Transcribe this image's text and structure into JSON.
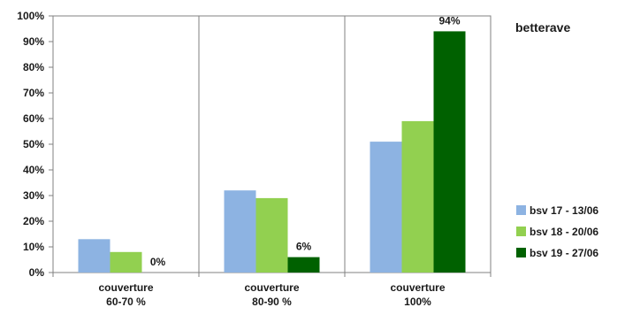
{
  "chart_data": {
    "type": "bar",
    "legend_title": "betterave",
    "categories": [
      [
        "couverture",
        "60-70 %"
      ],
      [
        "couverture",
        "80-90 %"
      ],
      [
        "couverture",
        "100%"
      ]
    ],
    "y_ticks": [
      "0%",
      "10%",
      "20%",
      "30%",
      "40%",
      "50%",
      "60%",
      "70%",
      "80%",
      "90%",
      "100%"
    ],
    "ylim": [
      0,
      100
    ],
    "grid": "vertical category separators",
    "legend_position": "right",
    "series": [
      {
        "name": "bsv 17 - 13/06",
        "color": "#8db3e2",
        "values": [
          13,
          32,
          51
        ]
      },
      {
        "name": "bsv 18 - 20/06",
        "color": "#92d050",
        "values": [
          8,
          29,
          59
        ]
      },
      {
        "name": "bsv 19 - 27/06",
        "color": "#006100",
        "values": [
          0,
          6,
          94
        ]
      }
    ],
    "data_labels": [
      {
        "series": 2,
        "category": 0,
        "text": "0%"
      },
      {
        "series": 2,
        "category": 1,
        "text": "6%"
      },
      {
        "series": 2,
        "category": 2,
        "text": "94%"
      }
    ]
  }
}
